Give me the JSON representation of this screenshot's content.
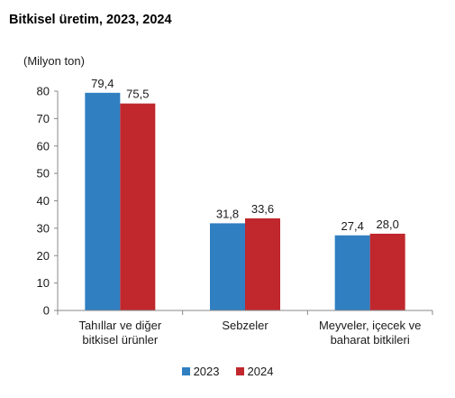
{
  "title": "Bitkisel üretim, 2023, 2024",
  "chart_data": {
    "type": "bar",
    "title": "Bitkisel üretim, 2023, 2024",
    "ylabel": "(Milyon ton)",
    "xlabel": "",
    "ylim": [
      0,
      80
    ],
    "yticks": [
      0,
      10,
      20,
      30,
      40,
      50,
      60,
      70,
      80
    ],
    "categories": [
      [
        "Tahıllar ve diğer",
        "bitkisel ürünler"
      ],
      [
        "Sebzeler"
      ],
      [
        "Meyveler, içecek ve",
        "baharat  bitkileri"
      ]
    ],
    "series": [
      {
        "name": "2023",
        "color": "#2f7fc1",
        "values": [
          79.4,
          31.8,
          27.4
        ],
        "labels": [
          "79,4",
          "31,8",
          "27,4"
        ]
      },
      {
        "name": "2024",
        "color": "#c0282d",
        "values": [
          75.5,
          33.6,
          28.0
        ],
        "labels": [
          "75,5",
          "33,6",
          "28,0"
        ]
      }
    ],
    "grid": false,
    "legend_position": "bottom-center"
  }
}
